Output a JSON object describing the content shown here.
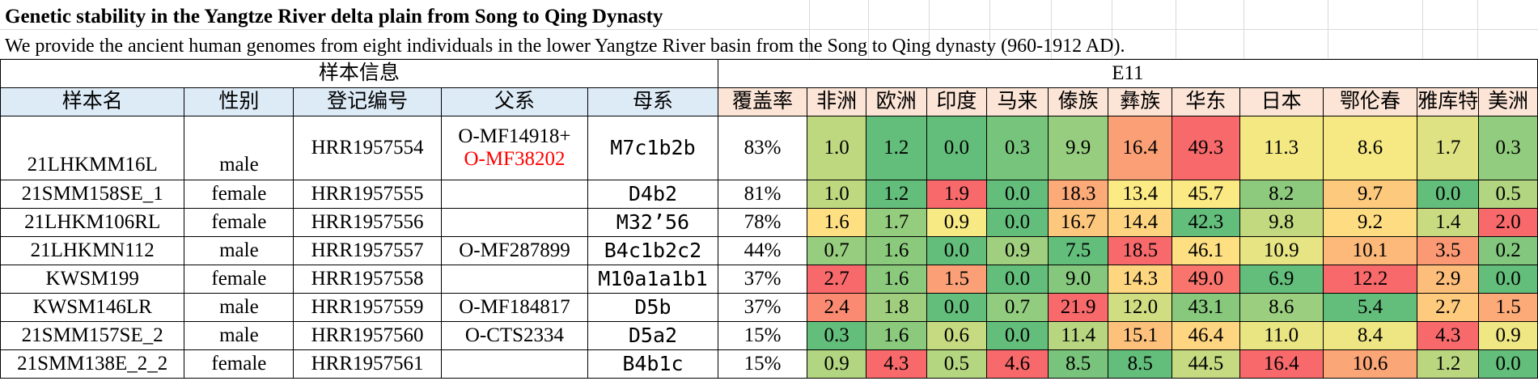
{
  "title": "Genetic stability in the Yangtze River delta plain from Song to Qing Dynasty",
  "subtitle": "We provide the ancient human genomes from eight individuals in the lower Yangtze River basin from the Song to Qing dynasty (960-1912 AD).",
  "table": {
    "group_headers": {
      "info": "样本信息",
      "e11": "E11"
    },
    "columns": [
      "样本名",
      "性别",
      "登记编号",
      "父系",
      "母系",
      "覆盖率",
      "非洲",
      "欧洲",
      "印度",
      "马来",
      "傣族",
      "彝族",
      "华东",
      "日本",
      "鄂伦春",
      "雅库特",
      "美洲"
    ],
    "rows": [
      {
        "name": "21LHKMM16L",
        "sex": "male",
        "id": "HRR1957554",
        "y_line1": "O-MF14918+",
        "y_line2": "O-MF38202",
        "mt": "M7c1b2b",
        "coverage": "83%",
        "values": [
          "1.0",
          "1.2",
          "0.0",
          "0.3",
          "9.9",
          "16.4",
          "49.3",
          "11.3",
          "8.6",
          "1.7",
          "0.3"
        ]
      },
      {
        "name": "21SMM158SE_1",
        "sex": "female",
        "id": "HRR1957555",
        "y_line1": "",
        "y_line2": "",
        "mt": "D4b2",
        "coverage": "81%",
        "values": [
          "1.0",
          "1.2",
          "1.9",
          "0.0",
          "18.3",
          "13.4",
          "45.7",
          "8.2",
          "9.7",
          "0.0",
          "0.5"
        ]
      },
      {
        "name": "21LHKM106RL",
        "sex": "female",
        "id": "HRR1957556",
        "y_line1": "",
        "y_line2": "",
        "mt": "M32’56",
        "coverage": "78%",
        "values": [
          "1.6",
          "1.7",
          "0.9",
          "0.0",
          "16.7",
          "14.4",
          "42.3",
          "9.8",
          "9.2",
          "1.4",
          "2.0"
        ]
      },
      {
        "name": "21LHKMN112",
        "sex": "male",
        "id": "HRR1957557",
        "y_line1": "O-MF287899",
        "y_line2": "",
        "mt": "B4c1b2c2",
        "coverage": "44%",
        "values": [
          "0.7",
          "1.6",
          "0.0",
          "0.9",
          "7.5",
          "18.5",
          "46.1",
          "10.9",
          "10.1",
          "3.5",
          "0.2"
        ]
      },
      {
        "name": "KWSM199",
        "sex": "female",
        "id": "HRR1957558",
        "y_line1": "",
        "y_line2": "",
        "mt": "M10a1a1b1",
        "coverage": "37%",
        "values": [
          "2.7",
          "1.6",
          "1.5",
          "0.0",
          "9.0",
          "14.3",
          "49.0",
          "6.9",
          "12.2",
          "2.9",
          "0.0"
        ]
      },
      {
        "name": "KWSM146LR",
        "sex": "male",
        "id": "HRR1957559",
        "y_line1": "O-MF184817",
        "y_line2": "",
        "mt": "D5b",
        "coverage": "37%",
        "values": [
          "2.4",
          "1.8",
          "0.0",
          "0.7",
          "21.9",
          "12.0",
          "43.1",
          "8.6",
          "5.4",
          "2.7",
          "1.5"
        ]
      },
      {
        "name": "21SMM157SE_2",
        "sex": "male",
        "id": "HRR1957560",
        "y_line1": "O-CTS2334",
        "y_line2": "",
        "mt": "D5a2",
        "coverage": "15%",
        "values": [
          "0.3",
          "1.6",
          "0.6",
          "0.0",
          "11.4",
          "15.1",
          "46.4",
          "11.0",
          "8.4",
          "4.3",
          "0.9"
        ]
      },
      {
        "name": "21SMM138E_2_2",
        "sex": "female",
        "id": "HRR1957561",
        "y_line1": "",
        "y_line2": "",
        "mt": "B4b1c",
        "coverage": "15%",
        "values": [
          "0.9",
          "4.3",
          "0.5",
          "4.6",
          "8.5",
          "8.5",
          "44.5",
          "16.4",
          "10.6",
          "1.2",
          "0.0"
        ]
      }
    ]
  },
  "colors": {
    "info_header_bg": "#ddebf7",
    "e11_header_bg": "#fce4d6",
    "highlight_text": "#ff0000",
    "scale_low": "#63be7b",
    "scale_mid": "#ffeb84",
    "scale_high": "#f8696b"
  }
}
